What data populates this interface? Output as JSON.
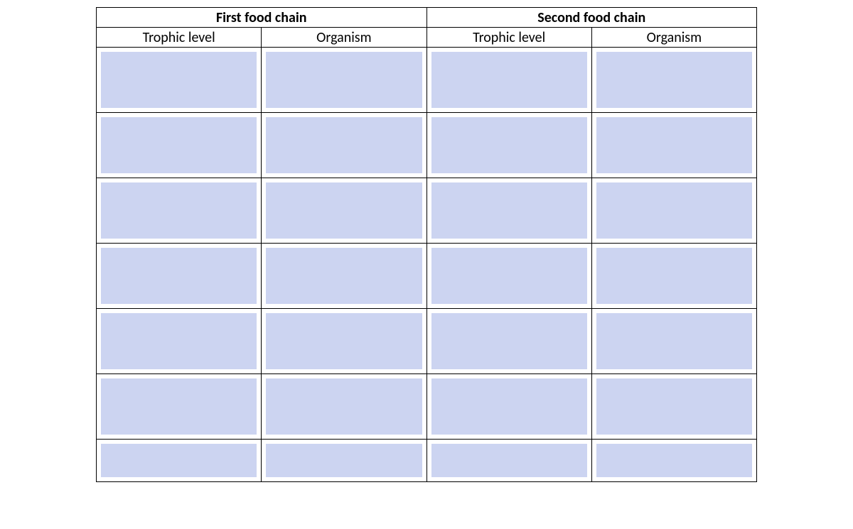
{
  "table": {
    "type": "table",
    "background_color": "#ffffff",
    "cell_fill_color": "#ccd4f1",
    "border_color": "#000000",
    "font_family": "Calibri",
    "header_fontsize_pt": 15,
    "subheader_fontsize_pt": 15,
    "header_font_weight": "bold",
    "subheader_font_weight": "normal",
    "num_data_rows": 7,
    "column_groups": [
      {
        "label": "First food chain",
        "columns": [
          "Trophic level",
          "Organism"
        ]
      },
      {
        "label": "Second food chain",
        "columns": [
          "Trophic level",
          "Organism"
        ]
      }
    ],
    "rows": [
      [
        "",
        "",
        "",
        ""
      ],
      [
        "",
        "",
        "",
        ""
      ],
      [
        "",
        "",
        "",
        ""
      ],
      [
        "",
        "",
        "",
        ""
      ],
      [
        "",
        "",
        "",
        ""
      ],
      [
        "",
        "",
        "",
        ""
      ],
      [
        "",
        "",
        "",
        ""
      ]
    ]
  }
}
